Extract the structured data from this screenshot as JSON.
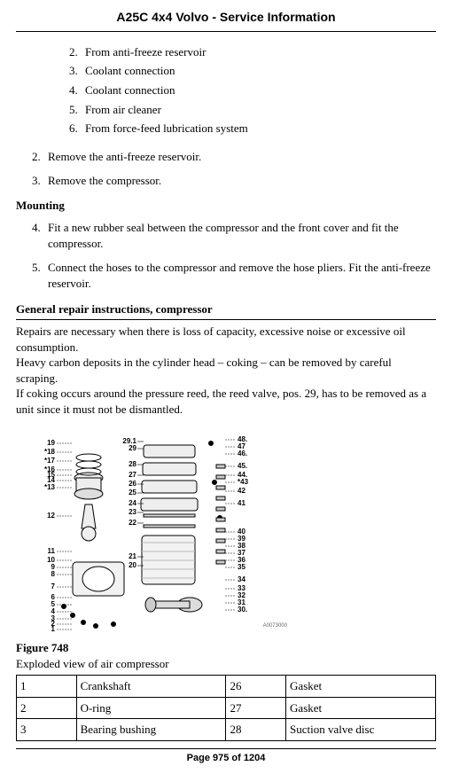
{
  "doc_title": "A25C 4x4 Volvo - Service Information",
  "inner_list": [
    {
      "n": "2.",
      "t": "From anti-freeze reservoir"
    },
    {
      "n": "3.",
      "t": "Coolant connection"
    },
    {
      "n": "4.",
      "t": "Coolant connection"
    },
    {
      "n": "5.",
      "t": "From air cleaner"
    },
    {
      "n": "6.",
      "t": "From force-feed lubrication system"
    }
  ],
  "outer_list_a": [
    {
      "n": "2.",
      "t": "Remove the anti-freeze reservoir."
    },
    {
      "n": "3.",
      "t": "Remove the compressor."
    }
  ],
  "mounting_hd": "Mounting",
  "outer_list_b": [
    {
      "n": "4.",
      "t": "Fit a new rubber seal between the compressor and the front cover and fit the compressor."
    },
    {
      "n": "5.",
      "t": "Connect the hoses to the compressor and remove the hose pliers. Fit the anti-freeze reservoir."
    }
  ],
  "gen_hd": "General repair instructions, compressor",
  "gen_para": "Repairs are necessary when there is loss of capacity, excessive noise or excessive oil consumption.\nHeavy carbon deposits in the cylinder head – coking – can be removed by careful scraping.\nIf coking occurs around the pressure reed, the reed valve, pos. 29, has to be removed as a unit since it must not be dismantled.",
  "diagram": {
    "left_labels": [
      "19",
      "*18",
      "*17",
      "*16",
      "15",
      "14",
      "*13",
      "12",
      "11",
      "10",
      "9",
      "8",
      "7",
      "6",
      "5",
      "4",
      "3",
      "2",
      "1"
    ],
    "mid_labels": [
      "29.1",
      "29",
      "28",
      "27",
      "26",
      "25",
      "24",
      "23",
      "22",
      "21",
      "20"
    ],
    "right_labels": [
      "48.",
      "47",
      "46.",
      "45.",
      "44.",
      "*43",
      "42",
      "41",
      "40",
      "39",
      "38",
      "37",
      "36",
      "35",
      "34",
      "33",
      "32",
      "31",
      "30."
    ],
    "footer_code": "A0073000"
  },
  "figure_label": "Figure 748",
  "figure_caption": "Exploded view of air compressor",
  "table_rows": [
    {
      "a_n": "1",
      "a_p": "Crankshaft",
      "b_n": "26",
      "b_p": "Gasket"
    },
    {
      "a_n": "2",
      "a_p": "O-ring",
      "b_n": "27",
      "b_p": "Gasket"
    },
    {
      "a_n": "3",
      "a_p": "Bearing bushing",
      "b_n": "28",
      "b_p": "Suction valve disc"
    }
  ],
  "page_footer": "Page 975 of 1204"
}
